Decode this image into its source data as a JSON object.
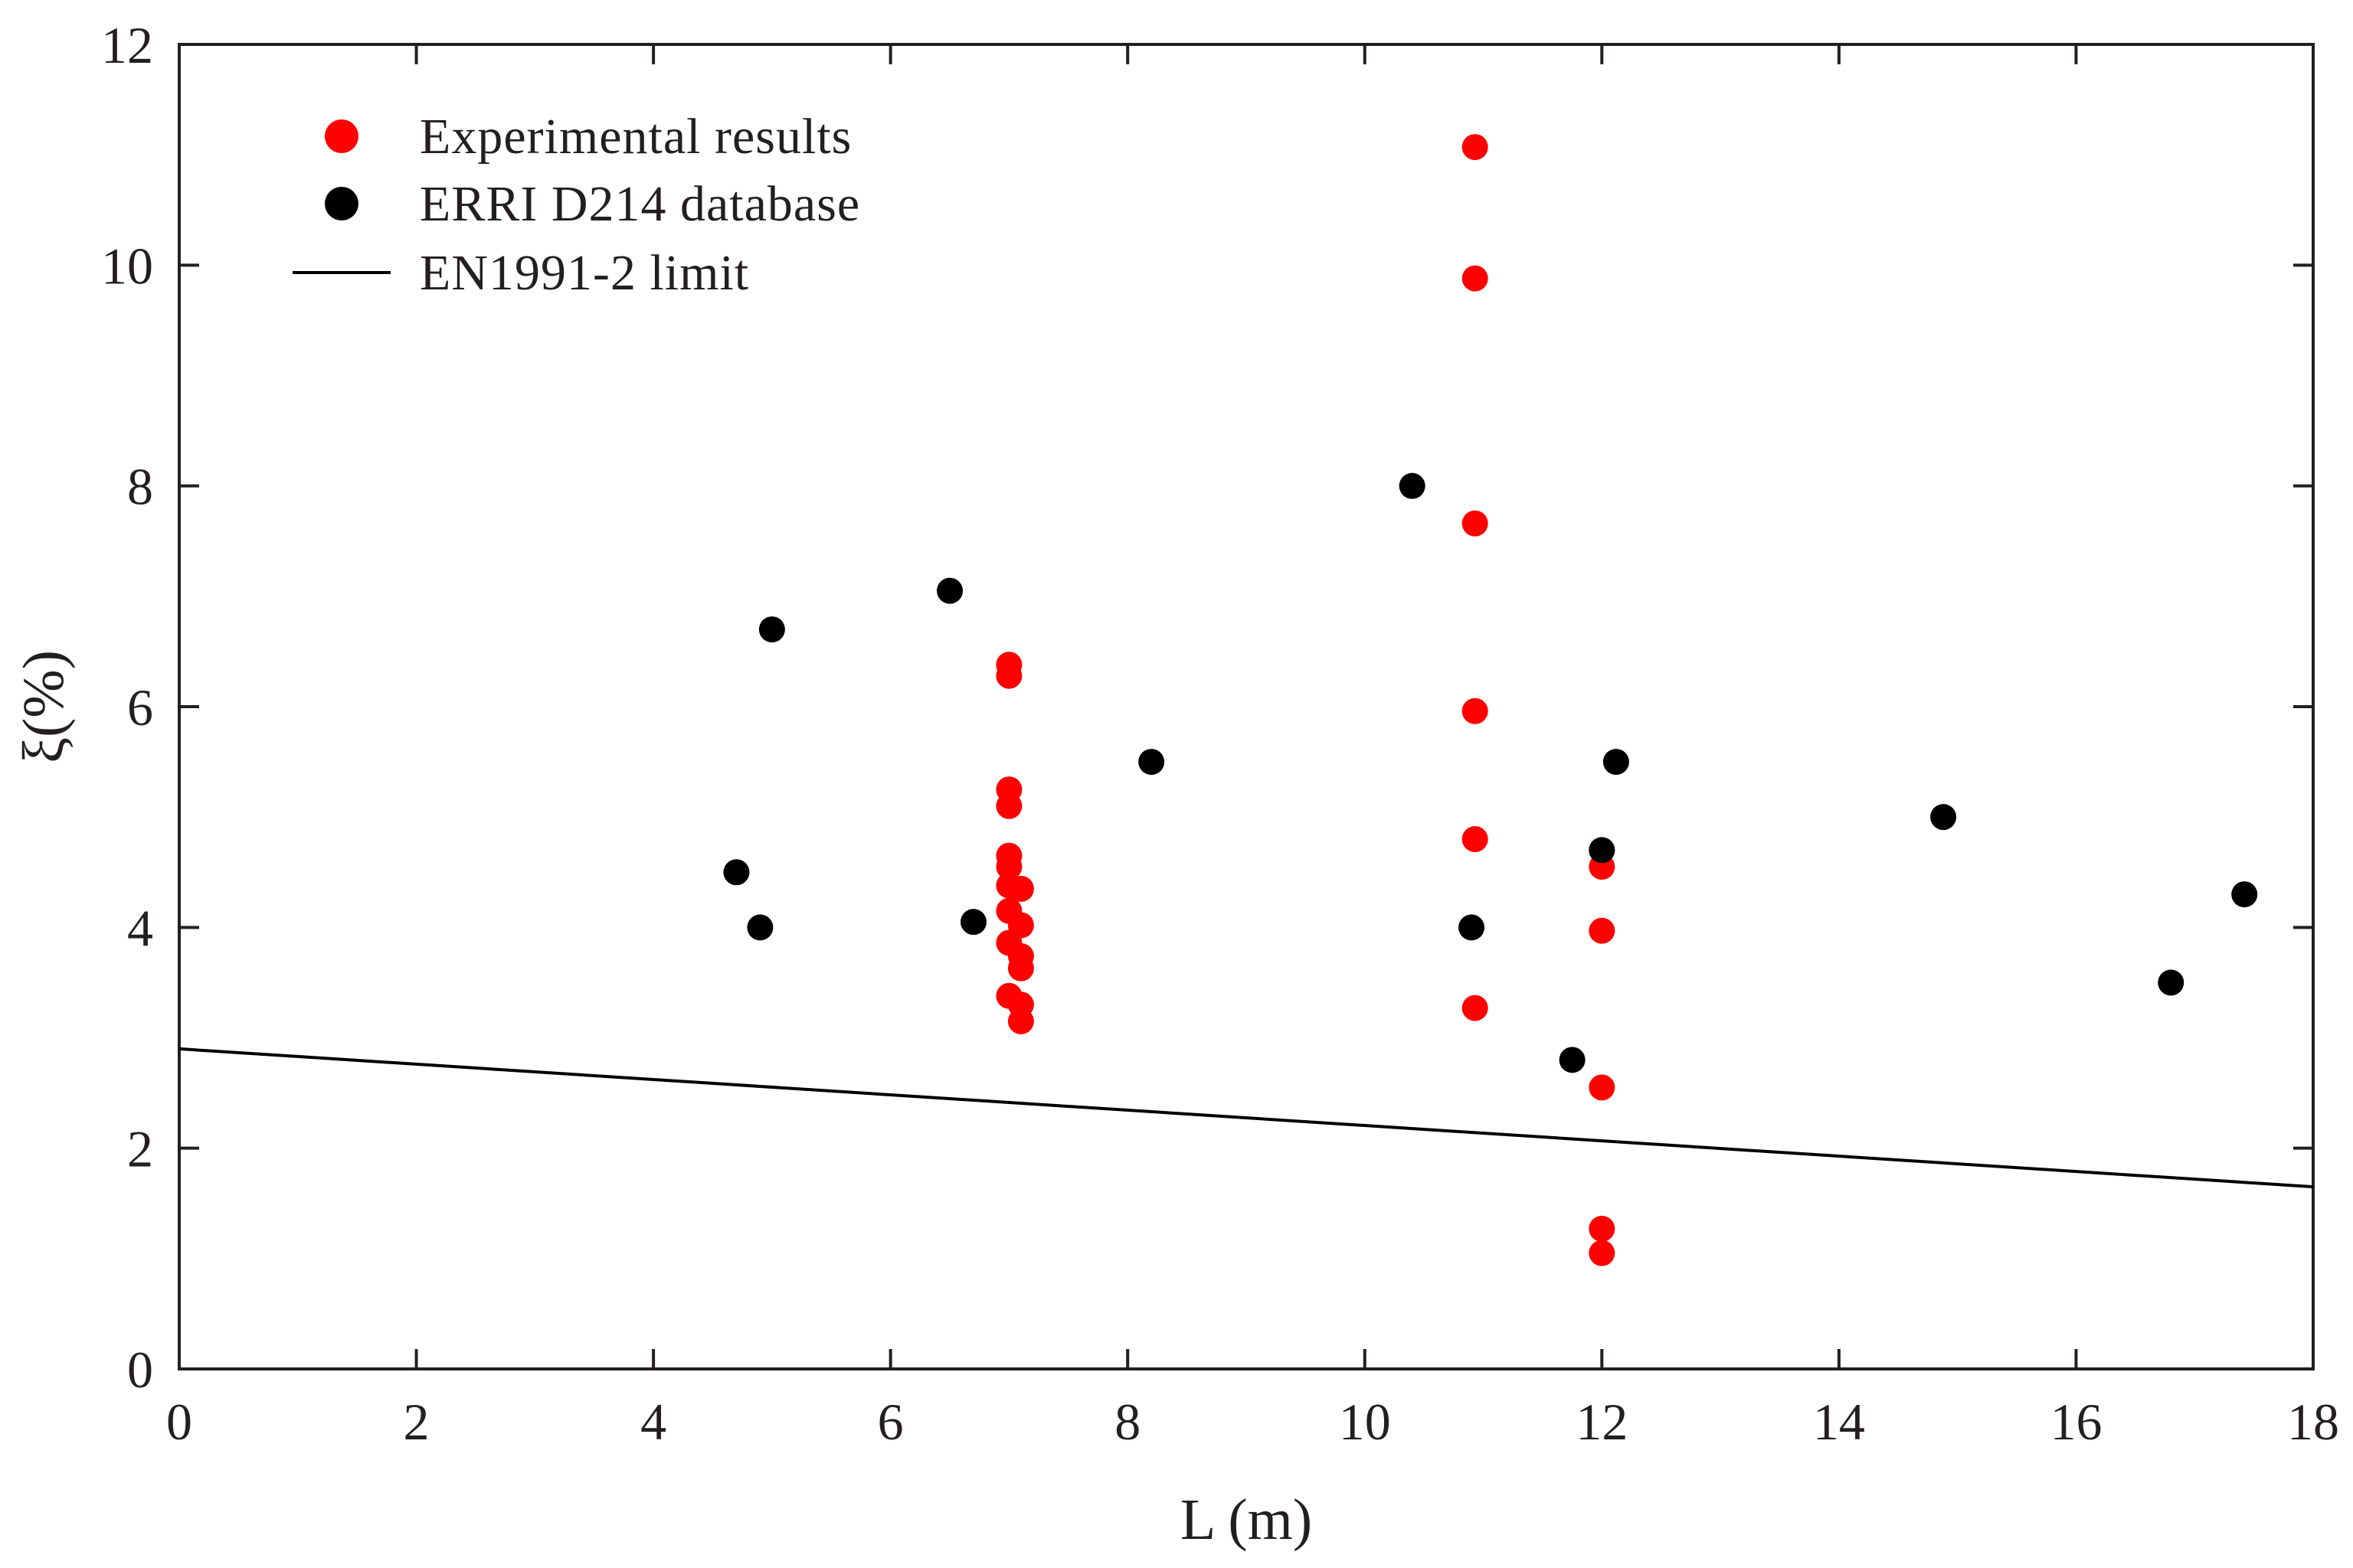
{
  "chart_data": {
    "type": "scatter",
    "title": "",
    "xlabel": "L (m)",
    "ylabel": "ξ(%)",
    "xlim": [
      0,
      18
    ],
    "ylim": [
      0,
      12
    ],
    "xticks": [
      0,
      2,
      4,
      6,
      8,
      10,
      12,
      14,
      16,
      18
    ],
    "yticks": [
      0,
      2,
      4,
      6,
      8,
      10,
      12
    ],
    "grid": false,
    "legend_position": "top-left",
    "series": [
      {
        "name": "Experimental results",
        "kind": "scatter",
        "color": "#ff0000",
        "points": [
          [
            7.0,
            6.38
          ],
          [
            7.0,
            6.28
          ],
          [
            7.0,
            5.25
          ],
          [
            7.0,
            5.1
          ],
          [
            7.0,
            4.65
          ],
          [
            7.0,
            4.55
          ],
          [
            7.0,
            4.38
          ],
          [
            7.1,
            4.35
          ],
          [
            7.0,
            4.15
          ],
          [
            7.1,
            4.02
          ],
          [
            7.0,
            3.86
          ],
          [
            7.1,
            3.74
          ],
          [
            7.1,
            3.63
          ],
          [
            7.0,
            3.38
          ],
          [
            7.1,
            3.3
          ],
          [
            7.1,
            3.15
          ],
          [
            10.93,
            11.07
          ],
          [
            10.93,
            9.88
          ],
          [
            10.93,
            7.66
          ],
          [
            10.93,
            5.96
          ],
          [
            10.93,
            4.8
          ],
          [
            10.93,
            3.27
          ],
          [
            12.0,
            4.7
          ],
          [
            12.0,
            4.55
          ],
          [
            12.0,
            3.97
          ],
          [
            12.0,
            2.55
          ],
          [
            12.0,
            1.27
          ],
          [
            12.0,
            1.05
          ]
        ]
      },
      {
        "name": "ERRI D214 database",
        "kind": "scatter",
        "color": "#000000",
        "points": [
          [
            4.7,
            4.5
          ],
          [
            4.9,
            4.0
          ],
          [
            5.0,
            6.7
          ],
          [
            6.5,
            7.05
          ],
          [
            6.7,
            4.05
          ],
          [
            8.2,
            5.5
          ],
          [
            10.4,
            8.0
          ],
          [
            10.9,
            4.0
          ],
          [
            11.75,
            2.8
          ],
          [
            12.0,
            4.7
          ],
          [
            12.12,
            5.5
          ],
          [
            14.88,
            5.0
          ],
          [
            16.8,
            3.5
          ],
          [
            17.42,
            4.3
          ]
        ]
      },
      {
        "name": "EN1991-2 limit",
        "kind": "line",
        "color": "#000000",
        "x": [
          0,
          18
        ],
        "y": [
          2.9,
          1.65
        ]
      }
    ]
  }
}
